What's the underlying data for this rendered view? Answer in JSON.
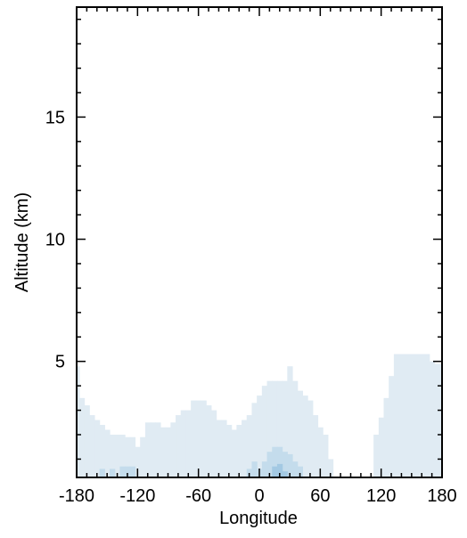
{
  "chart_data": {
    "type": "heatmap",
    "title": "",
    "xlabel": "Longitude",
    "ylabel": "Altitude (km)",
    "xlim": [
      -180,
      180
    ],
    "ylim": [
      0.25,
      19.5
    ],
    "x_ticks": [
      -180,
      -120,
      -60,
      0,
      60,
      120,
      180
    ],
    "x_tick_labels": [
      "-180",
      "-120",
      "-60",
      "0",
      "60",
      "120",
      "180"
    ],
    "y_ticks": [
      5,
      10,
      15
    ],
    "y_tick_labels": [
      "5",
      "10",
      "15"
    ],
    "grid": false,
    "legend": "none",
    "colors": {
      "level_1": "#e0ebf3",
      "level_2": "#c4dcec",
      "level_3": "#a3c9e3",
      "frame": "#000000"
    },
    "regions": [
      {
        "level": 1,
        "x": [
          -180,
          -175,
          -170,
          -165,
          -160,
          -155,
          -150,
          -145,
          -140,
          -135,
          -130,
          -125,
          -120,
          -115,
          -110,
          -105,
          -100,
          -95,
          -90,
          -85,
          -80,
          -75,
          -70,
          -65,
          -60,
          -55,
          -50,
          -45,
          -40,
          -35,
          -30,
          -25,
          -20,
          -15,
          -10,
          -5,
          0,
          5,
          10,
          15,
          20,
          25,
          30,
          35,
          40,
          45,
          50,
          55,
          60,
          65,
          70
        ],
        "top": [
          4.8,
          3.5,
          3.2,
          2.8,
          2.6,
          2.4,
          2.2,
          2.0,
          2.0,
          2.0,
          1.9,
          1.9,
          1.5,
          1.9,
          2.5,
          2.5,
          2.5,
          2.3,
          2.3,
          2.5,
          2.8,
          3.0,
          3.0,
          3.4,
          3.4,
          3.4,
          3.2,
          3.0,
          2.6,
          2.6,
          2.4,
          2.2,
          2.4,
          2.6,
          2.8,
          3.3,
          3.6,
          4.0,
          4.2,
          4.2,
          4.2,
          4.2,
          4.8,
          4.2,
          3.8,
          3.6,
          3.4,
          2.8,
          2.3,
          2.0,
          1.0
        ]
      },
      {
        "level": 1,
        "x": [
          115,
          120,
          125,
          130,
          135,
          140,
          145,
          150,
          155,
          160,
          165,
          170,
          175,
          180
        ],
        "top": [
          2.0,
          2.7,
          3.5,
          4.4,
          5.3,
          5.3,
          5.3,
          5.3,
          5.3,
          5.3,
          5.3,
          5.0,
          4.9,
          4.9
        ]
      },
      {
        "level": 2,
        "x": [
          -155,
          -145,
          -135,
          -130,
          -125,
          -10,
          -5,
          0,
          5,
          10,
          15,
          20,
          25,
          30,
          35,
          40
        ],
        "top": [
          0.6,
          0.6,
          0.7,
          0.7,
          0.7,
          0.6,
          0.9,
          0.6,
          0.9,
          1.3,
          1.5,
          1.5,
          1.3,
          1.2,
          0.9,
          0.7
        ]
      },
      {
        "level": 3,
        "x": [
          15,
          20,
          25
        ],
        "top": [
          0.7,
          0.8,
          0.5
        ]
      }
    ]
  }
}
